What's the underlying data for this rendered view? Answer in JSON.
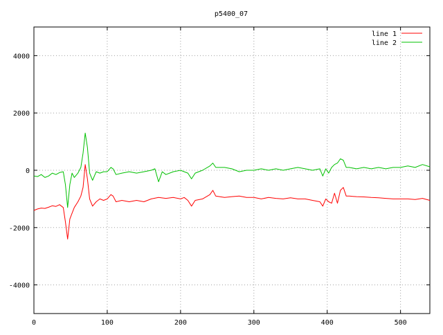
{
  "chart_data": {
    "type": "line",
    "title": "p5400_07",
    "xlabel": "",
    "ylabel": "",
    "xlim": [
      0,
      540
    ],
    "ylim": [
      -5000,
      5000
    ],
    "x_ticks": [
      0,
      100,
      200,
      300,
      400,
      500
    ],
    "y_ticks": [
      -4000,
      -2000,
      0,
      2000,
      4000
    ],
    "x_tick_labels": [
      "0",
      "100",
      "200",
      "300",
      "400",
      "500"
    ],
    "y_tick_labels": [
      "-4000",
      "-2000",
      "0",
      "2000",
      "4000"
    ],
    "grid": true,
    "legend_position": "top-right",
    "series": [
      {
        "name": "line 1",
        "color": "#ff0000",
        "points": [
          [
            0,
            -1400
          ],
          [
            5,
            -1350
          ],
          [
            10,
            -1320
          ],
          [
            15,
            -1330
          ],
          [
            20,
            -1290
          ],
          [
            25,
            -1240
          ],
          [
            30,
            -1260
          ],
          [
            35,
            -1200
          ],
          [
            40,
            -1300
          ],
          [
            43,
            -1800
          ],
          [
            46,
            -2400
          ],
          [
            49,
            -1700
          ],
          [
            52,
            -1500
          ],
          [
            55,
            -1300
          ],
          [
            60,
            -1100
          ],
          [
            64,
            -900
          ],
          [
            67,
            -600
          ],
          [
            70,
            200
          ],
          [
            73,
            -300
          ],
          [
            76,
            -1000
          ],
          [
            80,
            -1250
          ],
          [
            85,
            -1100
          ],
          [
            90,
            -1000
          ],
          [
            95,
            -1050
          ],
          [
            100,
            -1000
          ],
          [
            105,
            -850
          ],
          [
            108,
            -900
          ],
          [
            112,
            -1100
          ],
          [
            120,
            -1050
          ],
          [
            130,
            -1100
          ],
          [
            140,
            -1050
          ],
          [
            150,
            -1100
          ],
          [
            160,
            -1000
          ],
          [
            170,
            -950
          ],
          [
            180,
            -980
          ],
          [
            190,
            -950
          ],
          [
            200,
            -1000
          ],
          [
            205,
            -950
          ],
          [
            210,
            -1050
          ],
          [
            215,
            -1250
          ],
          [
            220,
            -1050
          ],
          [
            230,
            -1000
          ],
          [
            240,
            -850
          ],
          [
            244,
            -700
          ],
          [
            248,
            -900
          ],
          [
            260,
            -950
          ],
          [
            270,
            -920
          ],
          [
            280,
            -900
          ],
          [
            290,
            -950
          ],
          [
            300,
            -950
          ],
          [
            310,
            -1000
          ],
          [
            320,
            -950
          ],
          [
            330,
            -980
          ],
          [
            340,
            -1000
          ],
          [
            350,
            -960
          ],
          [
            360,
            -1000
          ],
          [
            370,
            -1000
          ],
          [
            380,
            -1050
          ],
          [
            390,
            -1100
          ],
          [
            394,
            -1250
          ],
          [
            398,
            -1000
          ],
          [
            402,
            -1100
          ],
          [
            406,
            -1150
          ],
          [
            410,
            -800
          ],
          [
            414,
            -1150
          ],
          [
            418,
            -700
          ],
          [
            422,
            -600
          ],
          [
            426,
            -900
          ],
          [
            430,
            -900
          ],
          [
            440,
            -920
          ],
          [
            450,
            -930
          ],
          [
            460,
            -950
          ],
          [
            470,
            -960
          ],
          [
            480,
            -980
          ],
          [
            490,
            -1000
          ],
          [
            500,
            -1000
          ],
          [
            510,
            -1000
          ],
          [
            520,
            -1020
          ],
          [
            530,
            -980
          ],
          [
            540,
            -1050
          ]
        ]
      },
      {
        "name": "line 2",
        "color": "#00c000",
        "points": [
          [
            0,
            -200
          ],
          [
            5,
            -220
          ],
          [
            10,
            -150
          ],
          [
            15,
            -250
          ],
          [
            20,
            -200
          ],
          [
            25,
            -100
          ],
          [
            30,
            -150
          ],
          [
            35,
            -80
          ],
          [
            40,
            -50
          ],
          [
            43,
            -500
          ],
          [
            46,
            -1300
          ],
          [
            49,
            -500
          ],
          [
            52,
            -100
          ],
          [
            55,
            -250
          ],
          [
            60,
            -100
          ],
          [
            64,
            100
          ],
          [
            67,
            600
          ],
          [
            70,
            1300
          ],
          [
            73,
            800
          ],
          [
            76,
            -100
          ],
          [
            80,
            -350
          ],
          [
            85,
            -50
          ],
          [
            90,
            -100
          ],
          [
            95,
            -50
          ],
          [
            100,
            -50
          ],
          [
            105,
            100
          ],
          [
            108,
            50
          ],
          [
            112,
            -150
          ],
          [
            120,
            -100
          ],
          [
            130,
            -50
          ],
          [
            140,
            -100
          ],
          [
            150,
            -50
          ],
          [
            160,
            0
          ],
          [
            165,
            50
          ],
          [
            170,
            -400
          ],
          [
            175,
            -50
          ],
          [
            180,
            -150
          ],
          [
            190,
            -50
          ],
          [
            200,
            0
          ],
          [
            205,
            -50
          ],
          [
            210,
            -100
          ],
          [
            215,
            -300
          ],
          [
            220,
            -100
          ],
          [
            230,
            0
          ],
          [
            240,
            150
          ],
          [
            244,
            250
          ],
          [
            248,
            100
          ],
          [
            260,
            100
          ],
          [
            270,
            50
          ],
          [
            280,
            -50
          ],
          [
            290,
            0
          ],
          [
            300,
            0
          ],
          [
            310,
            50
          ],
          [
            320,
            0
          ],
          [
            330,
            50
          ],
          [
            340,
            0
          ],
          [
            350,
            50
          ],
          [
            360,
            100
          ],
          [
            370,
            50
          ],
          [
            380,
            0
          ],
          [
            390,
            50
          ],
          [
            394,
            -200
          ],
          [
            398,
            50
          ],
          [
            402,
            -100
          ],
          [
            406,
            100
          ],
          [
            410,
            200
          ],
          [
            414,
            250
          ],
          [
            418,
            400
          ],
          [
            422,
            350
          ],
          [
            426,
            100
          ],
          [
            430,
            100
          ],
          [
            440,
            50
          ],
          [
            450,
            100
          ],
          [
            460,
            50
          ],
          [
            470,
            100
          ],
          [
            480,
            50
          ],
          [
            490,
            100
          ],
          [
            500,
            100
          ],
          [
            510,
            150
          ],
          [
            520,
            100
          ],
          [
            530,
            200
          ],
          [
            540,
            120
          ]
        ]
      }
    ]
  }
}
